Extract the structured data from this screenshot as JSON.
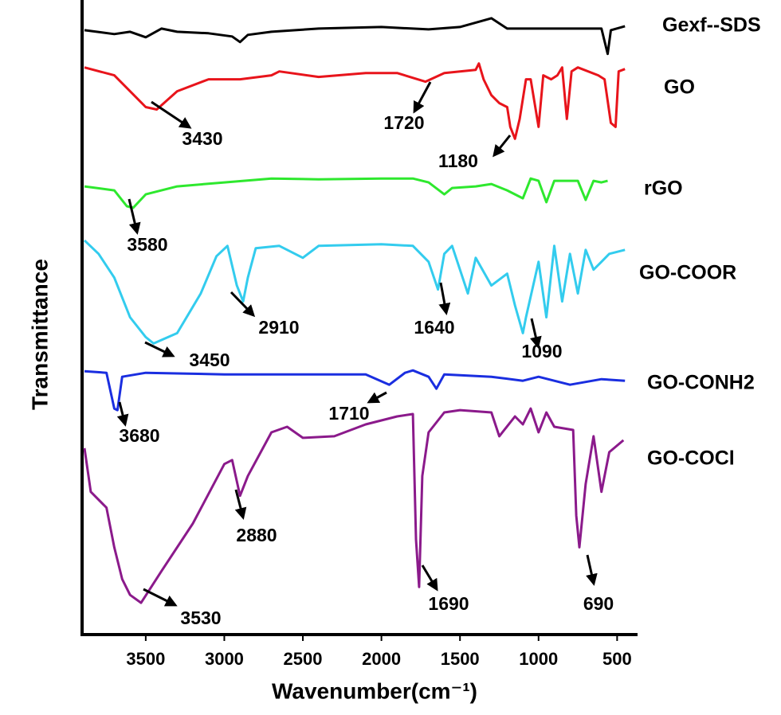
{
  "chart_data": {
    "type": "line",
    "x_label": "Wavenumber(cm⁻¹)",
    "y_label": "Transmittance",
    "xlim": [
      3900,
      370
    ],
    "ylim": [
      0,
      800
    ],
    "xticks": [
      3500,
      3000,
      2500,
      2000,
      1500,
      1000,
      500
    ],
    "series": [
      {
        "name": "Gexf--SDS",
        "color": "#000000",
        "label_color": "#000000",
        "x": [
          3890,
          3700,
          3600,
          3500,
          3400,
          3300,
          3100,
          2950,
          2900,
          2850,
          2700,
          2400,
          2000,
          1700,
          1500,
          1300,
          1200,
          1000,
          800,
          600,
          560,
          540,
          450
        ],
        "values": [
          762,
          757,
          760,
          753,
          764,
          760,
          758,
          754,
          747,
          756,
          760,
          764,
          766,
          763,
          766,
          777,
          764,
          764,
          764,
          764,
          732,
          762,
          767
        ]
      },
      {
        "name": "GO",
        "color": "#e8141b",
        "label_color": "#e8141b",
        "x": [
          3890,
          3700,
          3600,
          3500,
          3430,
          3300,
          3100,
          2900,
          2700,
          2650,
          2400,
          2100,
          1900,
          1720,
          1600,
          1400,
          1380,
          1350,
          1300,
          1250,
          1200,
          1180,
          1150,
          1120,
          1080,
          1050,
          1000,
          970,
          920,
          880,
          850,
          820,
          790,
          750,
          620,
          580,
          540,
          510,
          490,
          450
        ],
        "values": [
          715,
          705,
          685,
          665,
          662,
          685,
          700,
          700,
          705,
          710,
          703,
          708,
          708,
          697,
          708,
          712,
          720,
          700,
          680,
          670,
          665,
          640,
          625,
          650,
          700,
          700,
          640,
          705,
          700,
          705,
          715,
          650,
          710,
          715,
          705,
          700,
          645,
          640,
          710,
          713
        ]
      },
      {
        "name": "rGO",
        "color": "#2ee82e",
        "label_color": "#77933c",
        "x": [
          3890,
          3700,
          3620,
          3580,
          3500,
          3300,
          3000,
          2700,
          2400,
          2000,
          1800,
          1700,
          1600,
          1550,
          1400,
          1300,
          1200,
          1100,
          1050,
          1000,
          950,
          900,
          750,
          700,
          650,
          600,
          560
        ],
        "values": [
          565,
          560,
          540,
          538,
          555,
          565,
          570,
          575,
          574,
          575,
          575,
          570,
          555,
          563,
          565,
          568,
          560,
          550,
          575,
          572,
          545,
          572,
          572,
          548,
          572,
          570,
          572
        ]
      },
      {
        "name": "GO-COOR",
        "color": "#33ccee",
        "label_color": "#4bacc6",
        "x": [
          3890,
          3800,
          3700,
          3600,
          3500,
          3450,
          3300,
          3150,
          3050,
          2980,
          2920,
          2880,
          2850,
          2800,
          2650,
          2500,
          2400,
          2000,
          1800,
          1700,
          1640,
          1600,
          1550,
          1450,
          1400,
          1300,
          1200,
          1150,
          1100,
          1080,
          1000,
          950,
          900,
          850,
          800,
          750,
          700,
          650,
          600,
          550,
          450
        ],
        "values": [
          497,
          480,
          450,
          400,
          375,
          367,
          380,
          430,
          477,
          490,
          440,
          420,
          450,
          487,
          490,
          475,
          490,
          492,
          490,
          470,
          435,
          480,
          490,
          430,
          475,
          440,
          455,
          415,
          380,
          400,
          470,
          400,
          490,
          420,
          480,
          430,
          485,
          460,
          470,
          480,
          485
        ]
      },
      {
        "name": "GO-CONH2",
        "color": "#1a2ee0",
        "label_color": "#1f3864",
        "x": [
          3890,
          3750,
          3700,
          3680,
          3650,
          3500,
          3000,
          2500,
          2100,
          1950,
          1850,
          1800,
          1700,
          1650,
          1600,
          1300,
          1100,
          1000,
          800,
          600,
          450
        ],
        "values": [
          332,
          330,
          285,
          283,
          325,
          330,
          328,
          328,
          328,
          315,
          330,
          333,
          325,
          310,
          328,
          325,
          320,
          325,
          315,
          322,
          320
        ]
      },
      {
        "name": "GO-COCl",
        "color": "#8b1a8b",
        "label_color": "#8b1a8b",
        "x": [
          3890,
          3850,
          3750,
          3700,
          3650,
          3600,
          3530,
          3400,
          3200,
          3000,
          2950,
          2900,
          2850,
          2700,
          2600,
          2500,
          2300,
          2100,
          1900,
          1800,
          1780,
          1760,
          1740,
          1700,
          1600,
          1500,
          1300,
          1250,
          1150,
          1100,
          1050,
          1000,
          950,
          900,
          780,
          760,
          740,
          700,
          650,
          600,
          550,
          460
        ],
        "values": [
          235,
          180,
          160,
          110,
          70,
          50,
          40,
          80,
          140,
          215,
          220,
          175,
          200,
          255,
          262,
          248,
          250,
          265,
          275,
          278,
          120,
          60,
          200,
          255,
          280,
          283,
          280,
          250,
          275,
          265,
          285,
          255,
          280,
          262,
          258,
          150,
          110,
          190,
          250,
          180,
          230,
          245
        ]
      }
    ],
    "annotations": [
      "3430",
      "1720",
      "1180",
      "3580",
      "3450",
      "2910",
      "1640",
      "1090",
      "3680",
      "1710",
      "2880",
      "3530",
      "1690",
      "690"
    ]
  }
}
